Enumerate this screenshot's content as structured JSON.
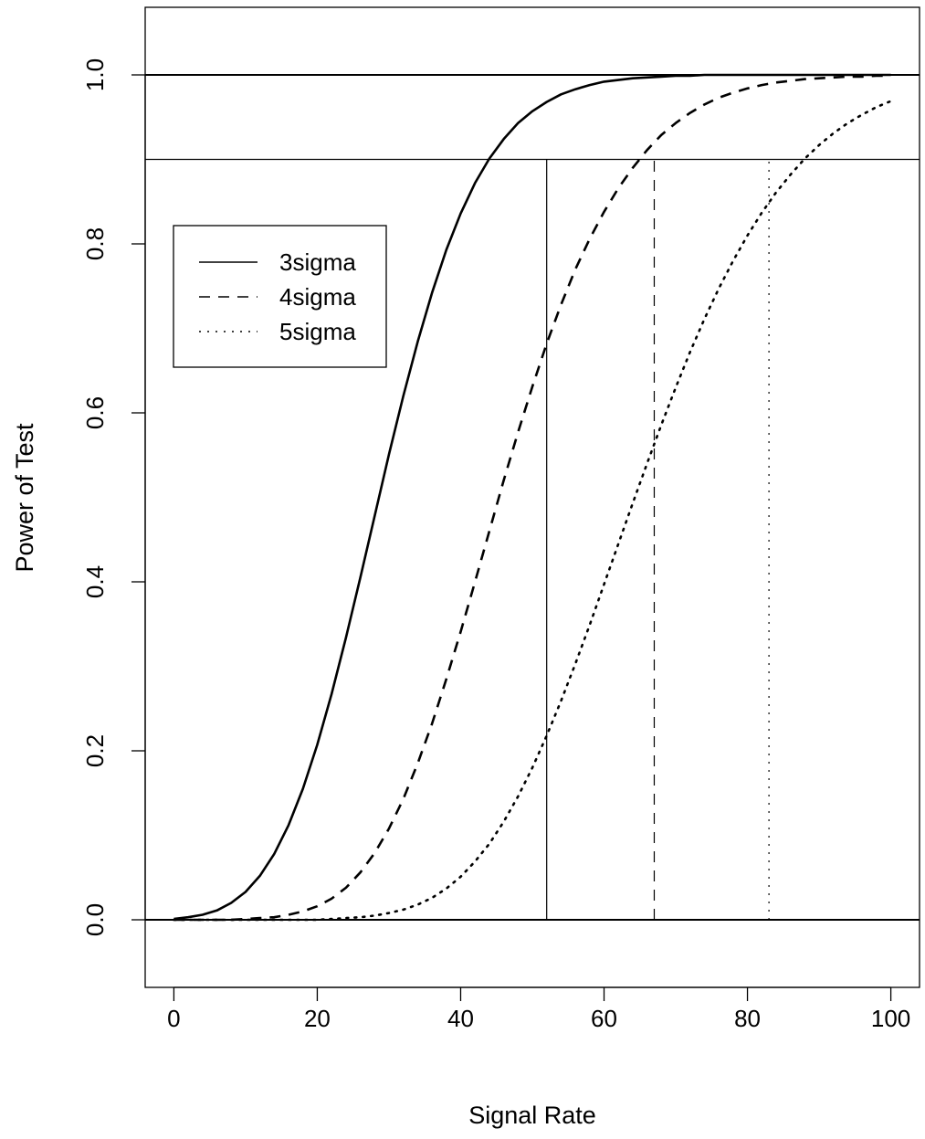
{
  "chart_data": {
    "type": "line",
    "title": "",
    "xlabel": "Signal Rate",
    "ylabel": "Power of Test",
    "xlim": [
      -4,
      104
    ],
    "ylim": [
      -0.08,
      1.08
    ],
    "x_ticks": [
      "0",
      "20",
      "40",
      "60",
      "80",
      "100"
    ],
    "y_ticks": [
      "0.0",
      "0.2",
      "0.4",
      "0.6",
      "0.8",
      "1.0"
    ],
    "grid": false,
    "legend_position": "upper-left",
    "x": [
      0,
      2,
      4,
      6,
      8,
      10,
      12,
      14,
      16,
      18,
      20,
      22,
      24,
      26,
      28,
      30,
      32,
      34,
      36,
      38,
      40,
      42,
      44,
      46,
      48,
      50,
      52,
      54,
      56,
      58,
      60,
      62,
      64,
      66,
      68,
      70,
      72,
      74,
      76,
      78,
      80,
      82,
      84,
      86,
      88,
      90,
      92,
      94,
      96,
      98,
      100
    ],
    "series": [
      {
        "name": "3sigma",
        "line_style": "solid",
        "color": "#000000",
        "values": [
          0.001,
          0.003,
          0.006,
          0.011,
          0.02,
          0.033,
          0.052,
          0.078,
          0.112,
          0.155,
          0.207,
          0.267,
          0.334,
          0.405,
          0.478,
          0.551,
          0.62,
          0.684,
          0.742,
          0.793,
          0.836,
          0.872,
          0.901,
          0.924,
          0.943,
          0.957,
          0.968,
          0.977,
          0.983,
          0.988,
          0.992,
          0.994,
          0.996,
          0.997,
          0.998,
          0.999,
          0.999,
          1.0,
          1.0,
          1.0,
          1.0,
          1.0,
          1.0,
          1.0,
          1.0,
          1.0,
          1.0,
          1.0,
          1.0,
          1.0,
          1.0
        ]
      },
      {
        "name": "4sigma",
        "line_style": "dashed",
        "color": "#000000",
        "values": [
          0.0,
          0.0,
          0.0,
          0.0,
          0.0,
          0.001,
          0.002,
          0.003,
          0.006,
          0.01,
          0.016,
          0.025,
          0.038,
          0.056,
          0.079,
          0.108,
          0.143,
          0.185,
          0.232,
          0.285,
          0.341,
          0.4,
          0.46,
          0.52,
          0.577,
          0.631,
          0.682,
          0.728,
          0.77,
          0.806,
          0.838,
          0.866,
          0.89,
          0.911,
          0.929,
          0.943,
          0.955,
          0.965,
          0.973,
          0.979,
          0.984,
          0.988,
          0.991,
          0.993,
          0.995,
          0.996,
          0.997,
          0.998,
          0.998,
          0.999,
          0.999
        ]
      },
      {
        "name": "5sigma",
        "line_style": "dotted",
        "color": "#000000",
        "values": [
          0.0,
          0.0,
          0.0,
          0.0,
          0.0,
          0.0,
          0.0,
          0.0,
          0.0,
          0.0,
          0.0,
          0.001,
          0.002,
          0.003,
          0.005,
          0.008,
          0.012,
          0.018,
          0.026,
          0.037,
          0.051,
          0.069,
          0.09,
          0.116,
          0.146,
          0.18,
          0.218,
          0.259,
          0.303,
          0.349,
          0.397,
          0.445,
          0.493,
          0.54,
          0.586,
          0.63,
          0.672,
          0.711,
          0.747,
          0.78,
          0.81,
          0.837,
          0.861,
          0.882,
          0.901,
          0.917,
          0.931,
          0.943,
          0.953,
          0.962,
          0.969
        ]
      }
    ],
    "reference_lines": {
      "horizontal": [
        {
          "y": 1.0,
          "line_style": "solid"
        },
        {
          "y": 0.9,
          "line_style": "solid"
        },
        {
          "y": 0.0,
          "line_style": "solid"
        }
      ],
      "vertical": [
        {
          "x": 52,
          "y_to": 0.9,
          "line_style": "solid"
        },
        {
          "x": 67,
          "y_to": 0.9,
          "line_style": "dashed"
        },
        {
          "x": 83,
          "y_to": 0.9,
          "line_style": "dotted"
        }
      ]
    }
  }
}
